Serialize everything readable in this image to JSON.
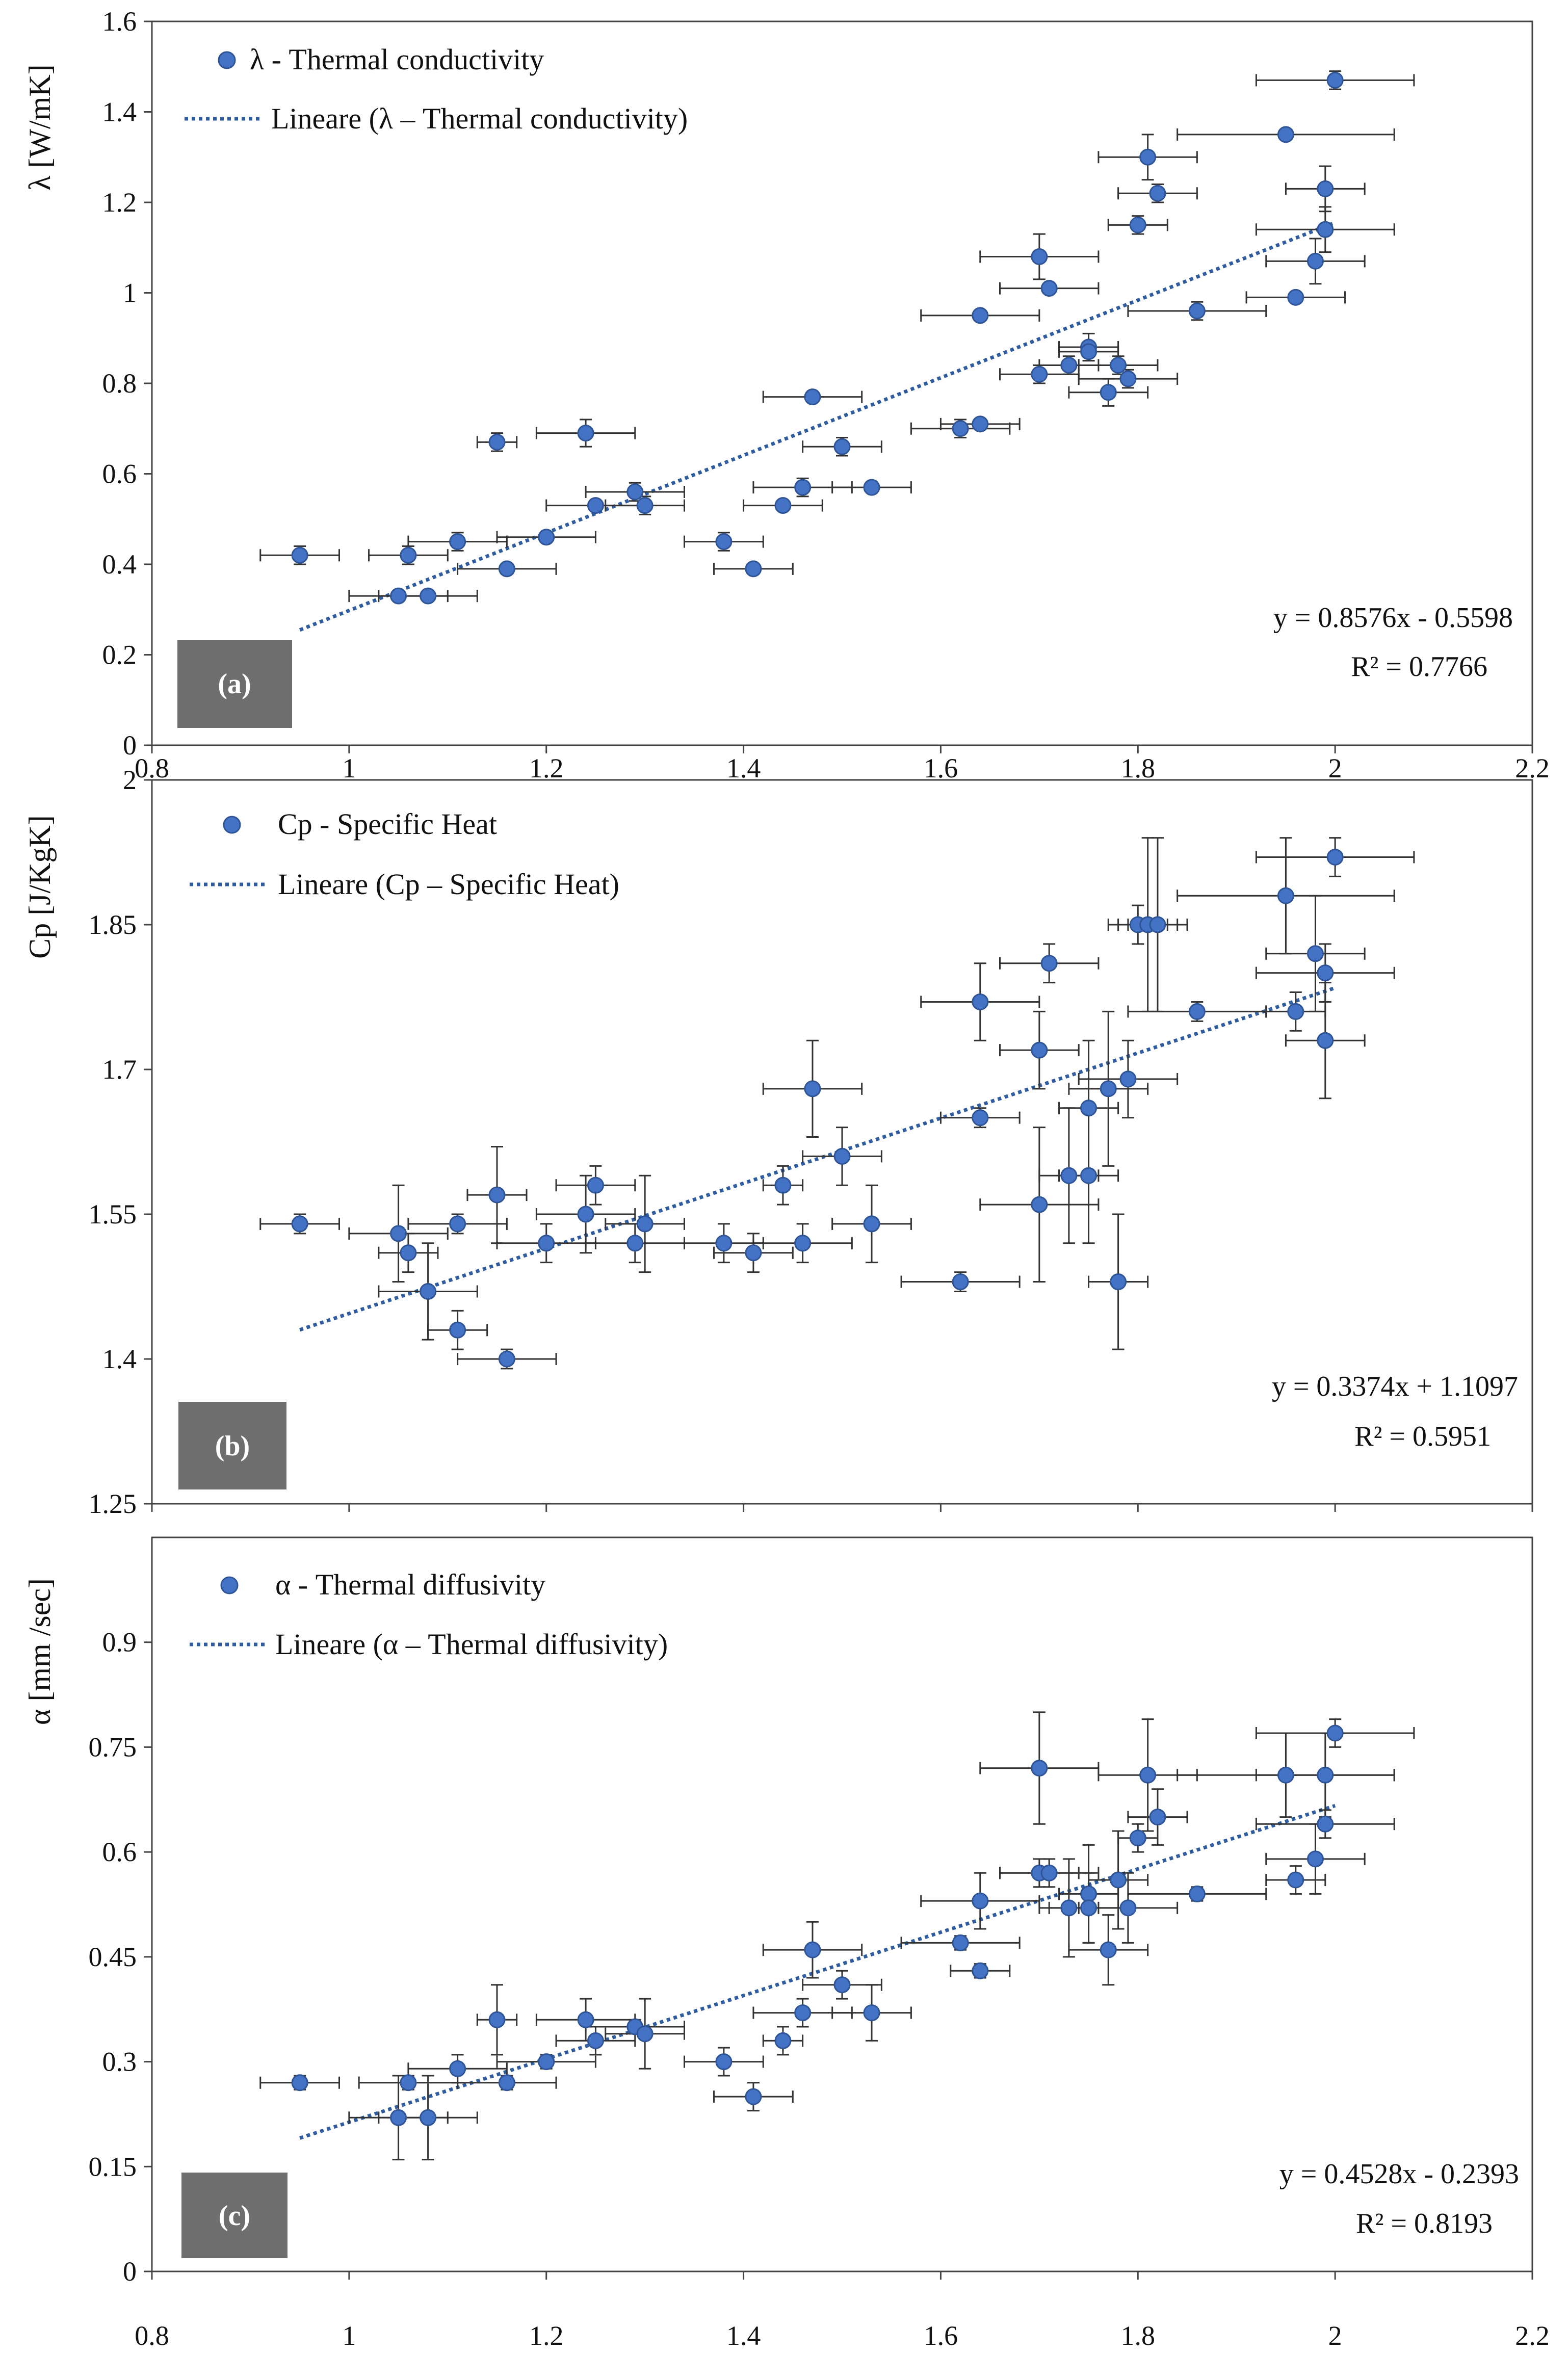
{
  "colors": {
    "marker": "#4472C4",
    "marker_edge": "#2F5597",
    "trendline": "#2E5C9E",
    "errorbar": "#333333",
    "axis": "#444444",
    "panel_label_box": "#6E6E6E"
  },
  "chart_data": [
    {
      "type": "scatter",
      "panel_label": "(a)",
      "ylabel": "λ [W/mK]",
      "xlabel": "",
      "xlim": [
        0.8,
        2.2
      ],
      "ylim": [
        0,
        1.6
      ],
      "xticks": [
        "0.8",
        "1",
        "1.2",
        "1.4",
        "1.6",
        "1.8",
        "2",
        "2.2"
      ],
      "yticks": [
        "0",
        "0.2",
        "0.4",
        "0.6",
        "0.8",
        "1",
        "1.2",
        "1.4",
        "1.6"
      ],
      "series_name": "λ - Thermal conductivity",
      "trend_name": "Lineare (λ – Thermal conductivity)",
      "equation": "y = 0.8576x - 0.5598",
      "r2": "R² = 0.7766",
      "trend": {
        "slope": 0.8576,
        "intercept": -0.5598,
        "x_range": [
          0.95,
          2.0
        ]
      },
      "points": [
        {
          "x": 0.95,
          "y": 0.42,
          "ex": 0.04,
          "ey": 0.02
        },
        {
          "x": 1.06,
          "y": 0.42,
          "ex": 0.04,
          "ey": 0.02
        },
        {
          "x": 1.11,
          "y": 0.45,
          "ex": 0.05,
          "ey": 0.02
        },
        {
          "x": 1.05,
          "y": 0.33,
          "ex": 0.05,
          "ey": 0.01
        },
        {
          "x": 1.08,
          "y": 0.33,
          "ex": 0.05,
          "ey": 0.01
        },
        {
          "x": 1.16,
          "y": 0.39,
          "ex": 0.05,
          "ey": 0.01
        },
        {
          "x": 1.15,
          "y": 0.67,
          "ex": 0.02,
          "ey": 0.02
        },
        {
          "x": 1.2,
          "y": 0.46,
          "ex": 0.05,
          "ey": 0.01
        },
        {
          "x": 1.24,
          "y": 0.69,
          "ex": 0.05,
          "ey": 0.03
        },
        {
          "x": 1.25,
          "y": 0.53,
          "ex": 0.05,
          "ey": 0.01
        },
        {
          "x": 1.29,
          "y": 0.56,
          "ex": 0.05,
          "ey": 0.02
        },
        {
          "x": 1.3,
          "y": 0.53,
          "ex": 0.04,
          "ey": 0.02
        },
        {
          "x": 1.38,
          "y": 0.45,
          "ex": 0.04,
          "ey": 0.02
        },
        {
          "x": 1.41,
          "y": 0.39,
          "ex": 0.04,
          "ey": 0.01
        },
        {
          "x": 1.44,
          "y": 0.53,
          "ex": 0.04,
          "ey": 0.01
        },
        {
          "x": 1.46,
          "y": 0.57,
          "ex": 0.05,
          "ey": 0.02
        },
        {
          "x": 1.47,
          "y": 0.77,
          "ex": 0.05,
          "ey": 0.01
        },
        {
          "x": 1.5,
          "y": 0.66,
          "ex": 0.04,
          "ey": 0.02
        },
        {
          "x": 1.53,
          "y": 0.57,
          "ex": 0.04,
          "ey": 0.01
        },
        {
          "x": 1.62,
          "y": 0.7,
          "ex": 0.05,
          "ey": 0.02
        },
        {
          "x": 1.64,
          "y": 0.71,
          "ex": 0.04,
          "ey": 0.01
        },
        {
          "x": 1.64,
          "y": 0.95,
          "ex": 0.06,
          "ey": 0.01
        },
        {
          "x": 1.7,
          "y": 1.08,
          "ex": 0.06,
          "ey": 0.05
        },
        {
          "x": 1.7,
          "y": 0.82,
          "ex": 0.04,
          "ey": 0.02
        },
        {
          "x": 1.71,
          "y": 1.01,
          "ex": 0.05,
          "ey": 0.01
        },
        {
          "x": 1.73,
          "y": 0.84,
          "ex": 0.03,
          "ey": 0.02
        },
        {
          "x": 1.75,
          "y": 0.88,
          "ex": 0.03,
          "ey": 0.03
        },
        {
          "x": 1.75,
          "y": 0.87,
          "ex": 0.03,
          "ey": 0.02
        },
        {
          "x": 1.77,
          "y": 0.78,
          "ex": 0.04,
          "ey": 0.03
        },
        {
          "x": 1.78,
          "y": 0.84,
          "ex": 0.04,
          "ey": 0.02
        },
        {
          "x": 1.79,
          "y": 0.81,
          "ex": 0.05,
          "ey": 0.02
        },
        {
          "x": 1.8,
          "y": 1.15,
          "ex": 0.03,
          "ey": 0.02
        },
        {
          "x": 1.81,
          "y": 1.3,
          "ex": 0.05,
          "ey": 0.05
        },
        {
          "x": 1.82,
          "y": 1.22,
          "ex": 0.04,
          "ey": 0.02
        },
        {
          "x": 1.86,
          "y": 0.96,
          "ex": 0.07,
          "ey": 0.02
        },
        {
          "x": 1.95,
          "y": 1.35,
          "ex": 0.11,
          "ey": 0.01
        },
        {
          "x": 1.96,
          "y": 0.99,
          "ex": 0.05,
          "ey": 0.01
        },
        {
          "x": 1.98,
          "y": 1.07,
          "ex": 0.05,
          "ey": 0.05
        },
        {
          "x": 1.99,
          "y": 1.23,
          "ex": 0.04,
          "ey": 0.05
        },
        {
          "x": 1.99,
          "y": 1.14,
          "ex": 0.07,
          "ey": 0.05
        },
        {
          "x": 2.0,
          "y": 1.47,
          "ex": 0.08,
          "ey": 0.02
        }
      ]
    },
    {
      "type": "scatter",
      "panel_label": "(b)",
      "ylabel": "Cp [J/KgK]",
      "xlabel": "",
      "xlim": [
        0.8,
        2.2
      ],
      "ylim": [
        1.25,
        2.0
      ],
      "xticks": [],
      "yticks": [
        "1.25",
        "1.4",
        "1.55",
        "1.7",
        "1.85",
        "2"
      ],
      "series_name": "Cp - Specific Heat",
      "trend_name": "Lineare (Cp – Specific Heat)",
      "equation": "y = 0.3374x + 1.1097",
      "r2": "R² = 0.5951",
      "trend": {
        "slope": 0.3374,
        "intercept": 1.1097,
        "x_range": [
          0.95,
          2.0
        ]
      },
      "points": [
        {
          "x": 0.95,
          "y": 1.54,
          "ex": 0.04,
          "ey": 0.01
        },
        {
          "x": 1.05,
          "y": 1.53,
          "ex": 0.05,
          "ey": 0.05
        },
        {
          "x": 1.06,
          "y": 1.51,
          "ex": 0.03,
          "ey": 0.02
        },
        {
          "x": 1.08,
          "y": 1.47,
          "ex": 0.05,
          "ey": 0.05
        },
        {
          "x": 1.11,
          "y": 1.43,
          "ex": 0.03,
          "ey": 0.02
        },
        {
          "x": 1.11,
          "y": 1.54,
          "ex": 0.05,
          "ey": 0.01
        },
        {
          "x": 1.15,
          "y": 1.57,
          "ex": 0.03,
          "ey": 0.05
        },
        {
          "x": 1.16,
          "y": 1.4,
          "ex": 0.05,
          "ey": 0.01
        },
        {
          "x": 1.2,
          "y": 1.52,
          "ex": 0.05,
          "ey": 0.02
        },
        {
          "x": 1.24,
          "y": 1.55,
          "ex": 0.05,
          "ey": 0.04
        },
        {
          "x": 1.25,
          "y": 1.58,
          "ex": 0.04,
          "ey": 0.02
        },
        {
          "x": 1.29,
          "y": 1.52,
          "ex": 0.05,
          "ey": 0.02
        },
        {
          "x": 1.3,
          "y": 1.54,
          "ex": 0.04,
          "ey": 0.05
        },
        {
          "x": 1.38,
          "y": 1.52,
          "ex": 0.04,
          "ey": 0.02
        },
        {
          "x": 1.41,
          "y": 1.51,
          "ex": 0.04,
          "ey": 0.02
        },
        {
          "x": 1.44,
          "y": 1.58,
          "ex": 0.02,
          "ey": 0.02
        },
        {
          "x": 1.46,
          "y": 1.52,
          "ex": 0.05,
          "ey": 0.02
        },
        {
          "x": 1.47,
          "y": 1.68,
          "ex": 0.05,
          "ey": 0.05
        },
        {
          "x": 1.5,
          "y": 1.61,
          "ex": 0.04,
          "ey": 0.03
        },
        {
          "x": 1.53,
          "y": 1.54,
          "ex": 0.04,
          "ey": 0.04
        },
        {
          "x": 1.62,
          "y": 1.48,
          "ex": 0.06,
          "ey": 0.01
        },
        {
          "x": 1.64,
          "y": 1.77,
          "ex": 0.06,
          "ey": 0.04
        },
        {
          "x": 1.64,
          "y": 1.65,
          "ex": 0.04,
          "ey": 0.01
        },
        {
          "x": 1.7,
          "y": 1.72,
          "ex": 0.04,
          "ey": 0.04
        },
        {
          "x": 1.7,
          "y": 1.56,
          "ex": 0.06,
          "ey": 0.08
        },
        {
          "x": 1.71,
          "y": 1.81,
          "ex": 0.05,
          "ey": 0.02
        },
        {
          "x": 1.73,
          "y": 1.59,
          "ex": 0.03,
          "ey": 0.07
        },
        {
          "x": 1.75,
          "y": 1.66,
          "ex": 0.03,
          "ey": 0.07
        },
        {
          "x": 1.75,
          "y": 1.59,
          "ex": 0.03,
          "ey": 0.07
        },
        {
          "x": 1.77,
          "y": 1.68,
          "ex": 0.04,
          "ey": 0.08
        },
        {
          "x": 1.78,
          "y": 1.48,
          "ex": 0.03,
          "ey": 0.07
        },
        {
          "x": 1.79,
          "y": 1.69,
          "ex": 0.05,
          "ey": 0.04
        },
        {
          "x": 1.8,
          "y": 1.85,
          "ex": 0.03,
          "ey": 0.02
        },
        {
          "x": 1.81,
          "y": 1.85,
          "ex": 0.03,
          "ey": 0.09
        },
        {
          "x": 1.82,
          "y": 1.85,
          "ex": 0.03,
          "ey": 0.09
        },
        {
          "x": 1.86,
          "y": 1.76,
          "ex": 0.07,
          "ey": 0.01
        },
        {
          "x": 1.95,
          "y": 1.88,
          "ex": 0.11,
          "ey": 0.06
        },
        {
          "x": 1.96,
          "y": 1.76,
          "ex": 0.03,
          "ey": 0.02
        },
        {
          "x": 1.98,
          "y": 1.82,
          "ex": 0.05,
          "ey": 0.06
        },
        {
          "x": 1.99,
          "y": 1.8,
          "ex": 0.07,
          "ey": 0.03
        },
        {
          "x": 1.99,
          "y": 1.73,
          "ex": 0.04,
          "ey": 0.06
        },
        {
          "x": 2.0,
          "y": 1.92,
          "ex": 0.08,
          "ey": 0.02
        }
      ]
    },
    {
      "type": "scatter",
      "panel_label": "(c)",
      "ylabel": "α [mm /sec]",
      "xlabel": "",
      "xlim": [
        0.8,
        2.2
      ],
      "ylim": [
        0,
        1.05
      ],
      "xticks": [
        "0.8",
        "1",
        "1.2",
        "1.4",
        "1.6",
        "1.8",
        "2",
        "2.2"
      ],
      "yticks": [
        "0",
        "0.15",
        "0.3",
        "0.45",
        "0.6",
        "0.75",
        "0.9"
      ],
      "series_name": "α - Thermal diffusivity",
      "trend_name": "Lineare (α – Thermal diffusivity)",
      "equation": "y = 0.4528x - 0.2393",
      "r2": "R² = 0.8193",
      "trend": {
        "slope": 0.4528,
        "intercept": -0.2393,
        "x_range": [
          0.95,
          2.0
        ]
      },
      "points": [
        {
          "x": 0.95,
          "y": 0.27,
          "ex": 0.04,
          "ey": 0.01
        },
        {
          "x": 1.05,
          "y": 0.22,
          "ex": 0.05,
          "ey": 0.06
        },
        {
          "x": 1.06,
          "y": 0.27,
          "ex": 0.05,
          "ey": 0.01
        },
        {
          "x": 1.08,
          "y": 0.22,
          "ex": 0.05,
          "ey": 0.06
        },
        {
          "x": 1.11,
          "y": 0.29,
          "ex": 0.05,
          "ey": 0.02
        },
        {
          "x": 1.15,
          "y": 0.36,
          "ex": 0.02,
          "ey": 0.05
        },
        {
          "x": 1.16,
          "y": 0.27,
          "ex": 0.05,
          "ey": 0.01
        },
        {
          "x": 1.2,
          "y": 0.3,
          "ex": 0.05,
          "ey": 0.01
        },
        {
          "x": 1.24,
          "y": 0.36,
          "ex": 0.05,
          "ey": 0.03
        },
        {
          "x": 1.25,
          "y": 0.33,
          "ex": 0.04,
          "ey": 0.02
        },
        {
          "x": 1.29,
          "y": 0.35,
          "ex": 0.05,
          "ey": 0.01
        },
        {
          "x": 1.3,
          "y": 0.34,
          "ex": 0.04,
          "ey": 0.05
        },
        {
          "x": 1.38,
          "y": 0.3,
          "ex": 0.04,
          "ey": 0.02
        },
        {
          "x": 1.41,
          "y": 0.25,
          "ex": 0.04,
          "ey": 0.02
        },
        {
          "x": 1.44,
          "y": 0.33,
          "ex": 0.02,
          "ey": 0.02
        },
        {
          "x": 1.46,
          "y": 0.37,
          "ex": 0.05,
          "ey": 0.02
        },
        {
          "x": 1.47,
          "y": 0.46,
          "ex": 0.05,
          "ey": 0.04
        },
        {
          "x": 1.5,
          "y": 0.41,
          "ex": 0.04,
          "ey": 0.02
        },
        {
          "x": 1.53,
          "y": 0.37,
          "ex": 0.04,
          "ey": 0.04
        },
        {
          "x": 1.62,
          "y": 0.47,
          "ex": 0.06,
          "ey": 0.01
        },
        {
          "x": 1.64,
          "y": 0.53,
          "ex": 0.06,
          "ey": 0.04
        },
        {
          "x": 1.64,
          "y": 0.43,
          "ex": 0.03,
          "ey": 0.01
        },
        {
          "x": 1.7,
          "y": 0.72,
          "ex": 0.06,
          "ey": 0.08
        },
        {
          "x": 1.7,
          "y": 0.57,
          "ex": 0.04,
          "ey": 0.02
        },
        {
          "x": 1.71,
          "y": 0.57,
          "ex": 0.05,
          "ey": 0.02
        },
        {
          "x": 1.73,
          "y": 0.52,
          "ex": 0.03,
          "ey": 0.07
        },
        {
          "x": 1.75,
          "y": 0.54,
          "ex": 0.03,
          "ey": 0.07
        },
        {
          "x": 1.75,
          "y": 0.52,
          "ex": 0.04,
          "ey": 0.05
        },
        {
          "x": 1.77,
          "y": 0.46,
          "ex": 0.04,
          "ey": 0.05
        },
        {
          "x": 1.78,
          "y": 0.56,
          "ex": 0.03,
          "ey": 0.07
        },
        {
          "x": 1.79,
          "y": 0.52,
          "ex": 0.05,
          "ey": 0.05
        },
        {
          "x": 1.8,
          "y": 0.62,
          "ex": 0.02,
          "ey": 0.02
        },
        {
          "x": 1.81,
          "y": 0.71,
          "ex": 0.05,
          "ey": 0.08
        },
        {
          "x": 1.82,
          "y": 0.65,
          "ex": 0.03,
          "ey": 0.04
        },
        {
          "x": 1.86,
          "y": 0.54,
          "ex": 0.07,
          "ey": 0.01
        },
        {
          "x": 1.95,
          "y": 0.71,
          "ex": 0.11,
          "ey": 0.06
        },
        {
          "x": 1.96,
          "y": 0.56,
          "ex": 0.03,
          "ey": 0.02
        },
        {
          "x": 1.98,
          "y": 0.59,
          "ex": 0.05,
          "ey": 0.05
        },
        {
          "x": 1.99,
          "y": 0.71,
          "ex": 0.07,
          "ey": 0.06
        },
        {
          "x": 1.99,
          "y": 0.64,
          "ex": 0.07,
          "ey": 0.02
        },
        {
          "x": 2.0,
          "y": 0.77,
          "ex": 0.08,
          "ey": 0.02
        }
      ]
    }
  ]
}
